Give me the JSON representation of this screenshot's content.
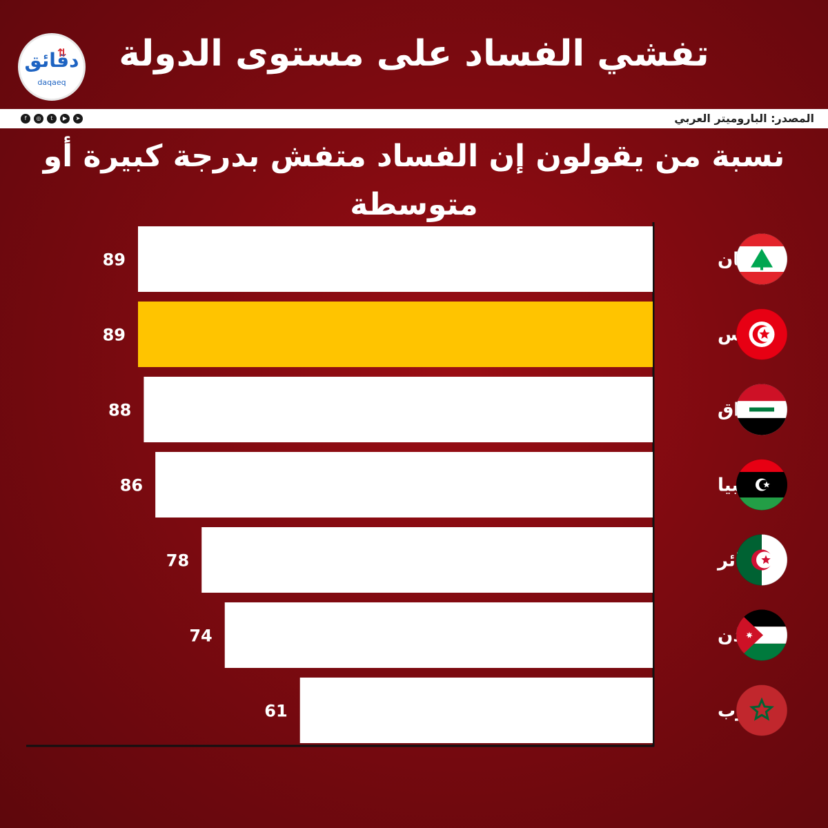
{
  "header": {
    "title": "تفشي الفساد على مستوى الدولة",
    "source": "المصدر: البارومیتر العربي",
    "logo_ar": "دقائق",
    "logo_latin": "daqaeq",
    "social_icons": [
      "facebook-icon",
      "instagram-icon",
      "twitter-icon",
      "youtube-icon",
      "telegram-icon"
    ]
  },
  "chart_data": {
    "type": "bar",
    "title": "نسبة من يقولون إن الفساد متفش بدرجة كبيرة أو متوسطة",
    "categories": [
      "لبنان",
      "تونس",
      "العراق",
      "ليبيا",
      "الجزائر",
      "الأردن",
      "المغرب"
    ],
    "values": [
      89,
      89,
      88,
      86,
      78,
      74,
      61
    ],
    "orientation": "horizontal",
    "direction": "right-to-left",
    "highlight_index": 1,
    "colors": {
      "bar": "#ffffff",
      "highlight": "#ffc400",
      "label": "#ffffff"
    },
    "flags": [
      "lebanon-flag-icon",
      "tunisia-flag-icon",
      "iraq-flag-icon",
      "libya-flag-icon",
      "algeria-flag-icon",
      "jordan-flag-icon",
      "morocco-flag-icon"
    ],
    "grid": false
  }
}
